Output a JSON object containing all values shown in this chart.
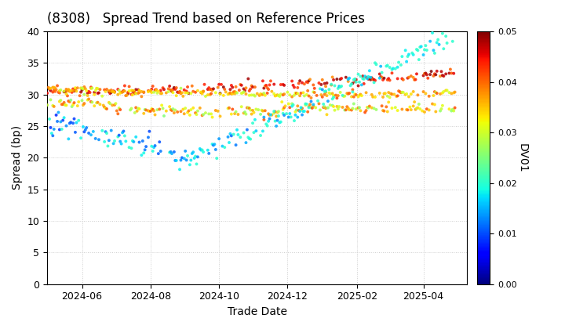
{
  "title": "(8308)   Spread Trend based on Reference Prices",
  "xlabel": "Trade Date",
  "ylabel": "Spread (bp)",
  "colorbar_label": "DV01",
  "ylim": [
    0,
    40
  ],
  "colorbar_range": [
    0.0,
    0.05
  ],
  "colorbar_ticks": [
    0.0,
    0.01,
    0.02,
    0.03,
    0.04,
    0.05
  ],
  "date_start": "2024-05-01",
  "date_end": "2025-05-01",
  "background": "#ffffff",
  "grid_color": "#cccccc",
  "grid_style": "dotted"
}
